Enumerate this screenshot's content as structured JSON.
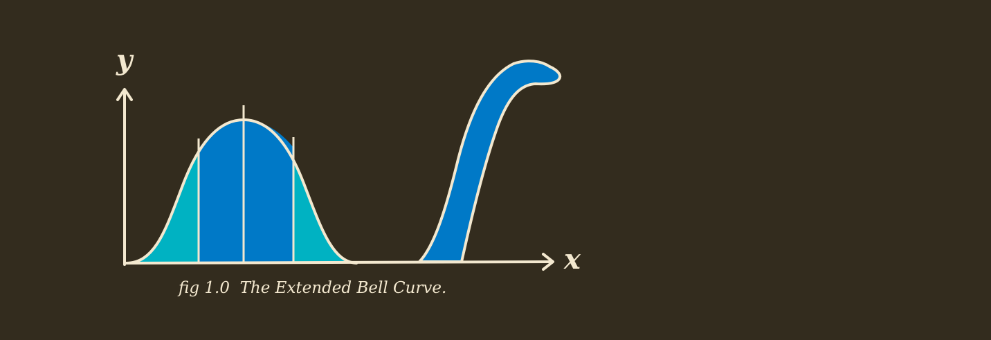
{
  "figure": {
    "y_axis_label": "y",
    "x_axis_label": "x",
    "caption": "fig 1.0  The Extended Bell Curve.",
    "colors": {
      "background": "#332c1e",
      "line": "#f3e8cf",
      "tail_fill": "#00b2c2",
      "core_fill": "#0079c7"
    }
  }
}
